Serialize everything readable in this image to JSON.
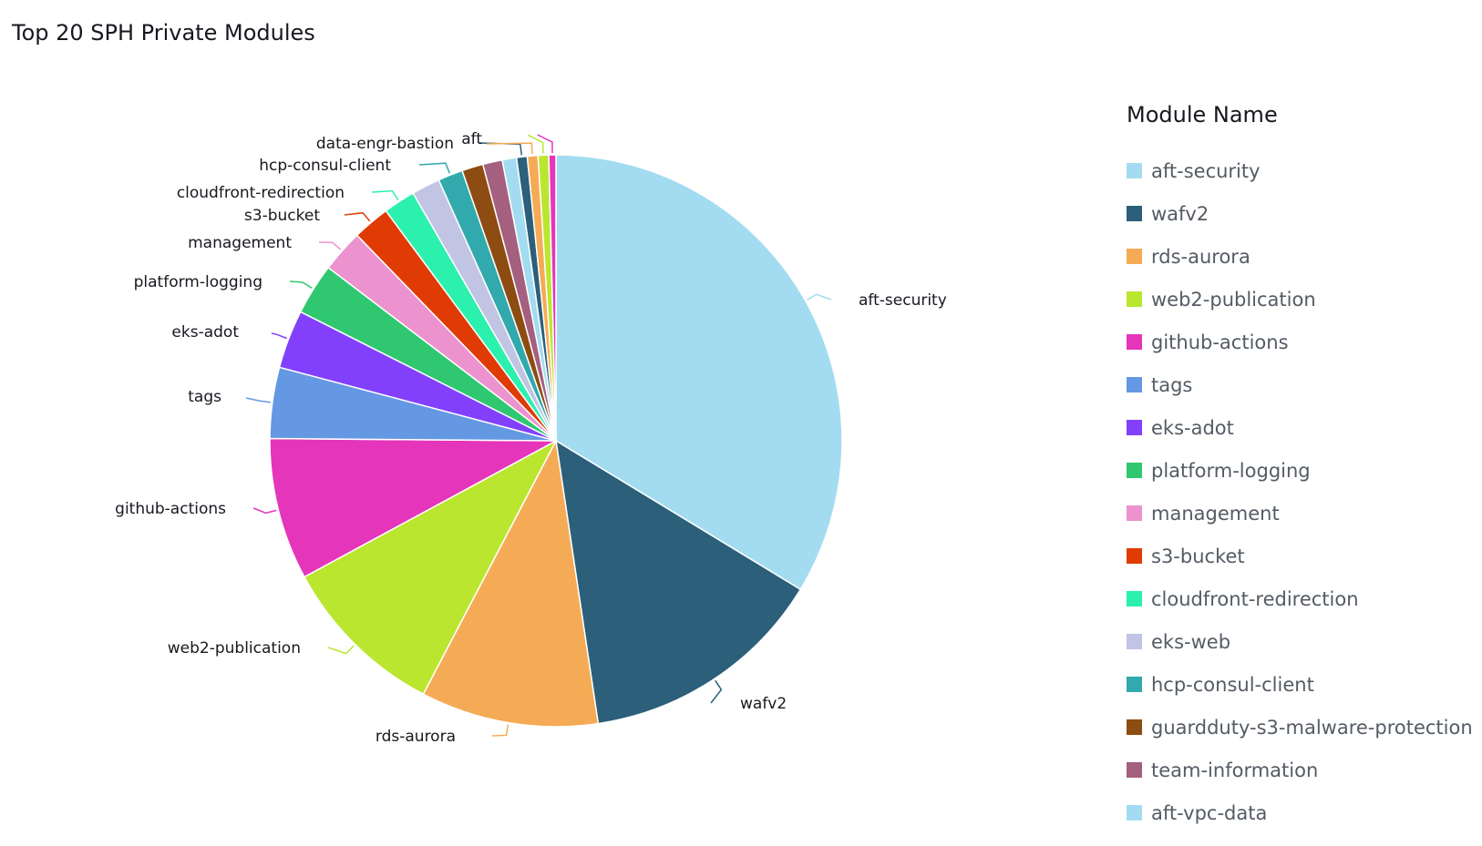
{
  "chart_data": {
    "type": "pie",
    "title": "Top 20 SPH Private Modules",
    "legend_title": "Module Name",
    "legend_position": "right",
    "slices": [
      {
        "label": "aft-security",
        "value": 33.6,
        "color": "#a3dcf0"
      },
      {
        "label": "wafv2",
        "value": 13.9,
        "color": "#2b5f7a"
      },
      {
        "label": "rds-aurora",
        "value": 10.0,
        "color": "#f5ab55"
      },
      {
        "label": "web2-publication",
        "value": 9.4,
        "color": "#bae630"
      },
      {
        "label": "github-actions",
        "value": 8.0,
        "color": "#e535bb"
      },
      {
        "label": "tags",
        "value": 4.0,
        "color": "#6498e3"
      },
      {
        "label": "eks-adot",
        "value": 3.3,
        "color": "#8240fc"
      },
      {
        "label": "platform-logging",
        "value": 2.9,
        "color": "#2fc870"
      },
      {
        "label": "management",
        "value": 2.4,
        "color": "#ec92cf"
      },
      {
        "label": "s3-bucket",
        "value": 2.1,
        "color": "#e03b05"
      },
      {
        "label": "cloudfront-redirection",
        "value": 1.8,
        "color": "#2cf0ae"
      },
      {
        "label": "eks-web",
        "value": 1.6,
        "color": "#c2c4e4"
      },
      {
        "label": "hcp-consul-client",
        "value": 1.4,
        "color": "#31a9ad"
      },
      {
        "label": "guardduty-s3-malware-protection",
        "value": 1.2,
        "color": "#8d4c12"
      },
      {
        "label": "team-information",
        "value": 1.1,
        "color": "#a55f7f"
      },
      {
        "label": "aft-vpc-data",
        "value": 0.8,
        "color": "#a3dcf0"
      },
      {
        "label": "data-engr-bastion",
        "value": 0.6,
        "color": "#2b5f7a"
      },
      {
        "label": "aft",
        "value": 0.6,
        "color": "#f5ab55"
      },
      {
        "label": "",
        "value": 0.6,
        "color": "#bae630"
      },
      {
        "label": "",
        "value": 0.4,
        "color": "#e535bb"
      }
    ],
    "slice_labels_shown": [
      "aft-security",
      "wafv2",
      "rds-aurora",
      "web2-publication",
      "github-actions",
      "tags",
      "eks-adot",
      "platform-logging",
      "management",
      "s3-bucket",
      "cloudfront-redirection",
      "hcp-consul-client",
      "data-engr-bastion",
      "aft"
    ],
    "legend_entries": [
      "aft-security",
      "wafv2",
      "rds-aurora",
      "web2-publication",
      "github-actions",
      "tags",
      "eks-adot",
      "platform-logging",
      "management",
      "s3-bucket",
      "cloudfront-redirection",
      "eks-web",
      "hcp-consul-client",
      "guardduty-s3-malware-protection",
      "team-information",
      "aft-vpc-data"
    ]
  }
}
